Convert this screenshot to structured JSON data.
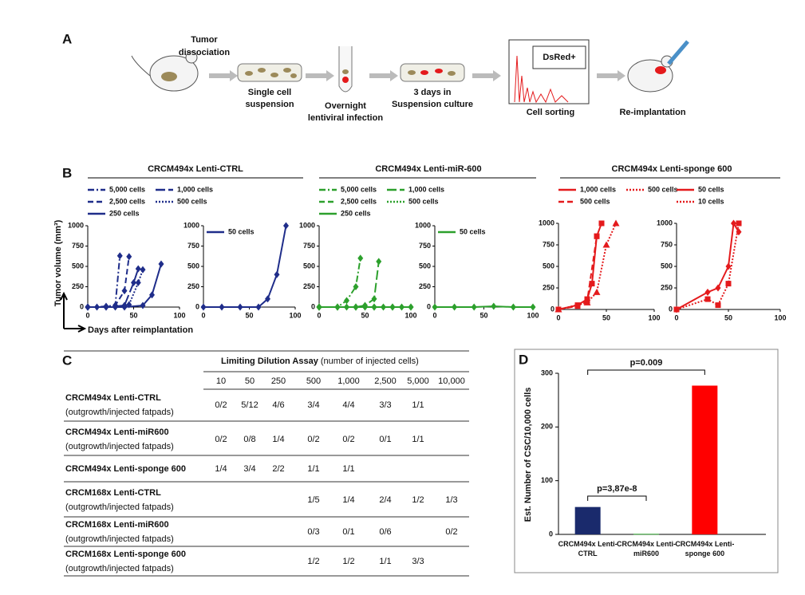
{
  "panel_labels": [
    "A",
    "B",
    "C",
    "D"
  ],
  "panel_a": {
    "steps": [
      "Tumor",
      "dissociation",
      "Single cell",
      "suspension",
      "Overnight",
      "lentiviral infection",
      "3 days in",
      "Suspension culture",
      "DsRed+",
      "Cell sorting",
      "Re-implantation"
    ]
  },
  "panel_b": {
    "titles": [
      "CRCM494x Lenti-CTRL",
      "CRCM494x Lenti-miR-600",
      "CRCM494x Lenti-sponge 600"
    ],
    "y_label": "Tumor volume (mm³)",
    "x_label": "Days after reimplantation"
  },
  "chart_data": [
    {
      "type": "line",
      "legend": "above",
      "xlim": [
        0,
        100
      ],
      "xticks": [
        0,
        50,
        100
      ],
      "ylim": [
        0,
        1000
      ],
      "yticks": [
        0,
        250,
        500,
        750,
        1000
      ],
      "series": [
        {
          "name": "5,000 cells",
          "color": "#1f2d8a",
          "linestyle": "dashdot",
          "marker": "diamond",
          "x": [
            0,
            10,
            20,
            30,
            35
          ],
          "values": [
            0,
            0,
            10,
            20,
            630
          ]
        },
        {
          "name": "2,500 cells",
          "color": "#1f2d8a",
          "linestyle": "dashed",
          "marker": "diamond",
          "x": [
            0,
            20,
            30,
            40,
            45
          ],
          "values": [
            0,
            0,
            20,
            200,
            620
          ]
        },
        {
          "name": "250 cells",
          "color": "#1f2d8a",
          "linestyle": "solid",
          "marker": "diamond",
          "x": [
            0,
            40,
            60,
            70,
            80
          ],
          "values": [
            0,
            0,
            20,
            150,
            530
          ]
        },
        {
          "name": "1,000 cells",
          "color": "#1f2d8a",
          "linestyle": "longdash",
          "marker": "diamond",
          "x": [
            0,
            20,
            40,
            50,
            55
          ],
          "values": [
            0,
            0,
            20,
            300,
            470
          ]
        },
        {
          "name": "500 cells",
          "color": "#1f2d8a",
          "linestyle": "dotted",
          "marker": "diamond",
          "x": [
            0,
            30,
            45,
            55,
            60
          ],
          "values": [
            0,
            0,
            30,
            300,
            460
          ]
        }
      ]
    },
    {
      "type": "line",
      "legend": "upper left",
      "xlim": [
        0,
        100
      ],
      "xticks": [
        0,
        50,
        100
      ],
      "ylim": [
        0,
        1000
      ],
      "yticks": [
        0,
        250,
        500,
        750,
        1000
      ],
      "series": [
        {
          "name": "50 cells",
          "color": "#1f2d8a",
          "linestyle": "solid",
          "marker": "diamond",
          "x": [
            0,
            20,
            40,
            60,
            70,
            80,
            90
          ],
          "values": [
            0,
            0,
            0,
            0,
            100,
            400,
            1000
          ]
        }
      ]
    },
    {
      "type": "line",
      "legend": "above",
      "xlim": [
        0,
        100
      ],
      "xticks": [
        0,
        50,
        100
      ],
      "ylim": [
        0,
        1000
      ],
      "yticks": [
        0,
        250,
        500,
        750,
        1000
      ],
      "series": [
        {
          "name": "5,000 cells",
          "color": "#2ca02c",
          "linestyle": "dashdot",
          "marker": "diamond",
          "x": [
            0,
            20,
            30,
            40,
            45
          ],
          "values": [
            0,
            0,
            80,
            250,
            600
          ]
        },
        {
          "name": "2,500 cells",
          "color": "#2ca02c",
          "linestyle": "dashed",
          "marker": "diamond",
          "x": [
            0,
            20,
            40,
            60,
            80,
            100
          ],
          "values": [
            0,
            0,
            0,
            0,
            0,
            0
          ]
        },
        {
          "name": "250 cells",
          "color": "#2ca02c",
          "linestyle": "solid",
          "marker": "diamond",
          "x": [
            0,
            20,
            40,
            60,
            80,
            100
          ],
          "values": [
            0,
            0,
            0,
            0,
            0,
            0
          ]
        },
        {
          "name": "1,000 cells",
          "color": "#2ca02c",
          "linestyle": "longdash",
          "marker": "diamond",
          "x": [
            0,
            40,
            50,
            60,
            65
          ],
          "values": [
            0,
            0,
            20,
            100,
            560
          ]
        },
        {
          "name": "500 cells",
          "color": "#2ca02c",
          "linestyle": "dotted",
          "marker": "diamond",
          "x": [
            0,
            30,
            50,
            70,
            90
          ],
          "values": [
            0,
            0,
            0,
            0,
            0
          ]
        }
      ]
    },
    {
      "type": "line",
      "legend": "upper left",
      "xlim": [
        0,
        100
      ],
      "xticks": [
        0,
        50,
        100
      ],
      "ylim": [
        0,
        1000
      ],
      "yticks": [
        0,
        250,
        500,
        750,
        1000
      ],
      "series": [
        {
          "name": "50 cells",
          "color": "#2ca02c",
          "linestyle": "solid",
          "marker": "diamond",
          "x": [
            0,
            20,
            40,
            60,
            80,
            100
          ],
          "values": [
            0,
            0,
            0,
            10,
            0,
            0
          ]
        }
      ]
    },
    {
      "type": "line",
      "legend": "above",
      "xlim": [
        0,
        100
      ],
      "xticks": [
        0,
        50,
        100
      ],
      "ylim": [
        0,
        1000
      ],
      "yticks": [
        0,
        250,
        500,
        750,
        1000
      ],
      "series": [
        {
          "name": "1,000 cells",
          "color": "#e41a1c",
          "linestyle": "solid",
          "marker": "square",
          "x": [
            0,
            20,
            30,
            35,
            40,
            45
          ],
          "values": [
            0,
            50,
            120,
            300,
            850,
            1000
          ]
        },
        {
          "name": "500 cells",
          "color": "#e41a1c",
          "linestyle": "dashed",
          "marker": "square",
          "x": [
            0,
            20,
            30,
            40
          ],
          "values": [
            0,
            40,
            100,
            850
          ]
        },
        {
          "name": "500 cells",
          "color": "#e41a1c",
          "linestyle": "dotted",
          "marker": "triangle",
          "x": [
            0,
            30,
            40,
            50,
            60
          ],
          "values": [
            0,
            80,
            200,
            750,
            1000
          ]
        }
      ]
    },
    {
      "type": "line",
      "legend": "above",
      "xlim": [
        0,
        100
      ],
      "xticks": [
        0,
        50,
        100
      ],
      "ylim": [
        0,
        1000
      ],
      "yticks": [
        0,
        250,
        500,
        750,
        1000
      ],
      "series": [
        {
          "name": "50 cells",
          "color": "#e41a1c",
          "linestyle": "solid",
          "marker": "diamond",
          "x": [
            0,
            30,
            40,
            50,
            55,
            60
          ],
          "values": [
            0,
            200,
            250,
            500,
            1000,
            900
          ]
        },
        {
          "name": "10 cells",
          "color": "#e41a1c",
          "linestyle": "dotted",
          "marker": "square",
          "x": [
            0,
            30,
            40,
            50,
            60
          ],
          "values": [
            0,
            120,
            50,
            300,
            1000
          ]
        }
      ]
    },
    {
      "type": "bar",
      "y_label": "Est. Number of CSC/10,000 cells",
      "categories": [
        "CRCM494x Lenti-CTRL",
        "CRCM494x Lenti-miR600",
        "CRCM494x Lenti-sponge 600"
      ],
      "values": [
        51,
        1,
        277
      ],
      "colors": [
        "#1a2a6c",
        "#2ca02c",
        "#ff0000"
      ],
      "ylim": [
        0,
        300
      ],
      "yticks": [
        0,
        100,
        200,
        300
      ],
      "annotations": [
        "p=0.009",
        "p=3,87e-8"
      ]
    }
  ],
  "table": {
    "title": "Limiting Dilution Assay",
    "subtitle": " (number of injected cells)",
    "columns": [
      "10",
      "50",
      "250",
      "500",
      "1,000",
      "2,500",
      "5,000",
      "10,000"
    ],
    "rows": [
      {
        "name": "CRCM494x Lenti-CTRL",
        "sub": "(outgrowth/injected fatpads)",
        "cells": [
          "0/2",
          "5/12",
          "4/6",
          "3/4",
          "4/4",
          "3/3",
          "1/1",
          null
        ]
      },
      {
        "name": "CRCM494x Lenti-miR600",
        "sub": "(outgrowth/injected fatpads)",
        "cells": [
          "0/2",
          "0/8",
          "1/4",
          "0/2",
          "0/2",
          "0/1",
          "1/1",
          null
        ]
      },
      {
        "name": "CRCM494x Lenti-sponge 600",
        "sub": null,
        "cells": [
          "1/4",
          "3/4",
          "2/2",
          "1/1",
          "1/1",
          null,
          null,
          null
        ]
      },
      {
        "name": "CRCM168x Lenti-CTRL",
        "sub": "(outgrowth/injected fatpads)",
        "cells": [
          null,
          null,
          null,
          "1/5",
          "1/4",
          "2/4",
          "1/2",
          "1/3"
        ]
      },
      {
        "name": "CRCM168x Lenti-miR600",
        "sub": "(outgrowth/injected fatpads)",
        "cells": [
          null,
          null,
          null,
          "0/3",
          "0/1",
          "0/6",
          null,
          "0/2"
        ]
      },
      {
        "name": "CRCM168x Lenti-sponge 600",
        "sub": "(outgrowth/injected fatpads)",
        "cells": [
          null,
          null,
          null,
          "1/2",
          "1/2",
          "1/1",
          "3/3",
          null
        ]
      }
    ]
  }
}
